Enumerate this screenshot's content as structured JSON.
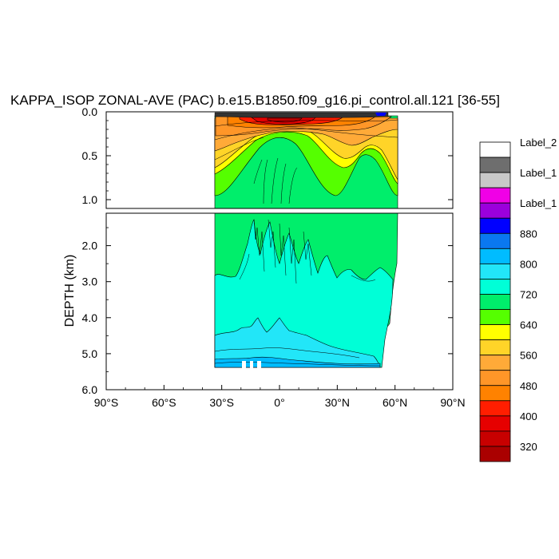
{
  "chart_data": {
    "type": "heatmap",
    "title": "KAPPA_ISOP ZONAL-AVE (PAC) b.e15.B1850.f09_g16.pi_control.all.121 [36-55]",
    "ylabel": "DEPTH (km)",
    "xlabel": "",
    "x_ticks": [
      "90°S",
      "60°S",
      "30°S",
      "0°",
      "30°N",
      "60°N",
      "90°N"
    ],
    "x_tick_values": [
      -90,
      -60,
      -30,
      0,
      30,
      60,
      90
    ],
    "upper_panel": {
      "ylim": [
        0.0,
        1.1
      ],
      "y_ticks": [
        "0.0",
        "0.5",
        "1.0"
      ],
      "y_tick_values": [
        0.0,
        0.5,
        1.0
      ]
    },
    "lower_panel": {
      "ylim": [
        1.1,
        6.0
      ],
      "y_ticks": [
        "2.0",
        "3.0",
        "4.0",
        "5.0",
        "6.0"
      ],
      "y_tick_values": [
        2.0,
        3.0,
        4.0,
        5.0,
        6.0
      ]
    },
    "colorbar": {
      "placement": "right",
      "colors": [
        "#ffffff",
        "#6e6e6e",
        "#c8c8c8",
        "#f000e6",
        "#9b00dc",
        "#0000ff",
        "#0a78f0",
        "#00bcff",
        "#22e6f8",
        "#00ffd7",
        "#00ee6b",
        "#55ff00",
        "#ffff00",
        "#ffd428",
        "#ffaa38",
        "#ff9628",
        "#ff8200",
        "#ff1e00",
        "#e60000",
        "#c80000",
        "#aa0000"
      ],
      "labels": [
        "320",
        "400",
        "480",
        "560",
        "640",
        "720",
        "800",
        "880",
        "Label_1",
        "Label_1",
        "Label_2"
      ],
      "label_levels": [
        1,
        3,
        5,
        7,
        9,
        11,
        13,
        15,
        17,
        19,
        21
      ]
    },
    "field_summary": {
      "surface_max_region_lat": [
        -15,
        10
      ],
      "deep_value_range": [
        640,
        720
      ],
      "ocean_lat_extent": [
        -34,
        65
      ],
      "ocean_bottom_depth_km": 5.4
    }
  }
}
